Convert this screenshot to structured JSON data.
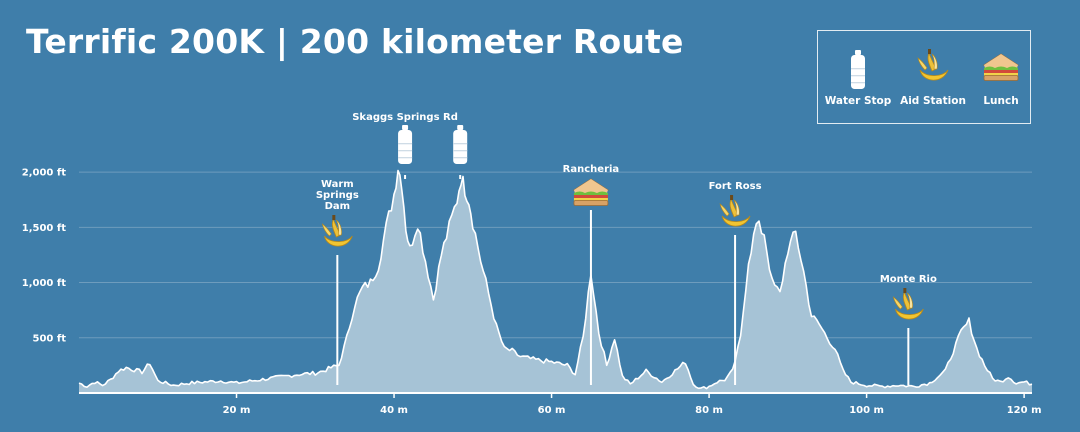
{
  "title": "Terrific 200K | 200 kilometer Route",
  "legend": {
    "items": [
      {
        "key": "water",
        "label": "Water Stop",
        "icon": "water-bottle-icon"
      },
      {
        "key": "aid",
        "label": "Aid Station",
        "icon": "banana-icon"
      },
      {
        "key": "lunch",
        "label": "Lunch",
        "icon": "sandwich-icon"
      }
    ]
  },
  "colors": {
    "background": "#3f7eaa",
    "profile_fill": "#a6c3d6",
    "profile_line": "#ffffff",
    "grid": "#6e9cbd"
  },
  "chart_data": {
    "type": "area",
    "xlabel": "",
    "ylabel": "",
    "xlim": [
      0,
      121
    ],
    "ylim": [
      0,
      2200
    ],
    "x_ticks": [
      {
        "value": 20,
        "label": "20 m"
      },
      {
        "value": 40,
        "label": "40 m"
      },
      {
        "value": 60,
        "label": "60 m"
      },
      {
        "value": 80,
        "label": "80 m"
      },
      {
        "value": 100,
        "label": "100 m"
      },
      {
        "value": 120,
        "label": "120 m"
      }
    ],
    "y_ticks": [
      {
        "value": 500,
        "label": "500 ft"
      },
      {
        "value": 1000,
        "label": "1,000 ft"
      },
      {
        "value": 1500,
        "label": "1,500 ft"
      },
      {
        "value": 2000,
        "label": "2,000 ft"
      }
    ],
    "grid": true,
    "series": [
      {
        "x": [
          0,
          1,
          2,
          3,
          4,
          5,
          6,
          7,
          8,
          9,
          10,
          12,
          14,
          16,
          18,
          20,
          22,
          24,
          26,
          28,
          30,
          31,
          32,
          33,
          34,
          35,
          36,
          37,
          38,
          39,
          40,
          40.5,
          41,
          41.5,
          42,
          43,
          44,
          45,
          46,
          47,
          48,
          48.5,
          49,
          49.5,
          50,
          51,
          52,
          53,
          54,
          55,
          56,
          58,
          60,
          62,
          63,
          64,
          65,
          66,
          67,
          68,
          69,
          70,
          72,
          74,
          76,
          77,
          78,
          79,
          80,
          81,
          82,
          83,
          84,
          85,
          86,
          87,
          88,
          89,
          90,
          91,
          92,
          93,
          94,
          95,
          96,
          97,
          98,
          100,
          102,
          104,
          106,
          108,
          110,
          111,
          112,
          113,
          114,
          115,
          116,
          117,
          118,
          119,
          120,
          121
        ],
        "y": [
          90,
          60,
          100,
          70,
          120,
          200,
          230,
          210,
          190,
          270,
          110,
          70,
          90,
          100,
          110,
          90,
          110,
          130,
          150,
          170,
          180,
          200,
          230,
          250,
          500,
          800,
          950,
          1000,
          1150,
          1500,
          1800,
          2050,
          1900,
          1500,
          1300,
          1550,
          1200,
          850,
          1250,
          1500,
          1750,
          1950,
          1850,
          1750,
          1550,
          1200,
          900,
          600,
          400,
          380,
          330,
          300,
          280,
          250,
          170,
          500,
          1100,
          550,
          250,
          500,
          150,
          80,
          200,
          100,
          220,
          280,
          80,
          40,
          60,
          100,
          120,
          200,
          500,
          1200,
          1520,
          1450,
          1000,
          900,
          1300,
          1450,
          1100,
          700,
          620,
          500,
          400,
          200,
          100,
          70,
          60,
          70,
          60,
          90,
          200,
          380,
          550,
          650,
          400,
          250,
          130,
          100,
          150,
          90,
          100,
          80
        ]
      }
    ],
    "stops": [
      {
        "type": "aid",
        "name": "Warm Springs Dam",
        "label_lines": [
          "Warm",
          "Springs",
          "Dam"
        ],
        "x": 32.8
      },
      {
        "type": "water",
        "name": "Skaggs Springs Rd",
        "label_lines": [
          "Skaggs Springs Rd"
        ],
        "x": 41.4
      },
      {
        "type": "water",
        "name": "",
        "label_lines": [],
        "x": 48.4
      },
      {
        "type": "lunch",
        "name": "Rancheria",
        "label_lines": [
          "Rancheria"
        ],
        "x": 65.0
      },
      {
        "type": "aid",
        "name": "Fort Ross",
        "label_lines": [
          "Fort Ross"
        ],
        "x": 83.3
      },
      {
        "type": "aid",
        "name": "Monte Rio",
        "label_lines": [
          "Monte Rio"
        ],
        "x": 105.3
      }
    ]
  }
}
